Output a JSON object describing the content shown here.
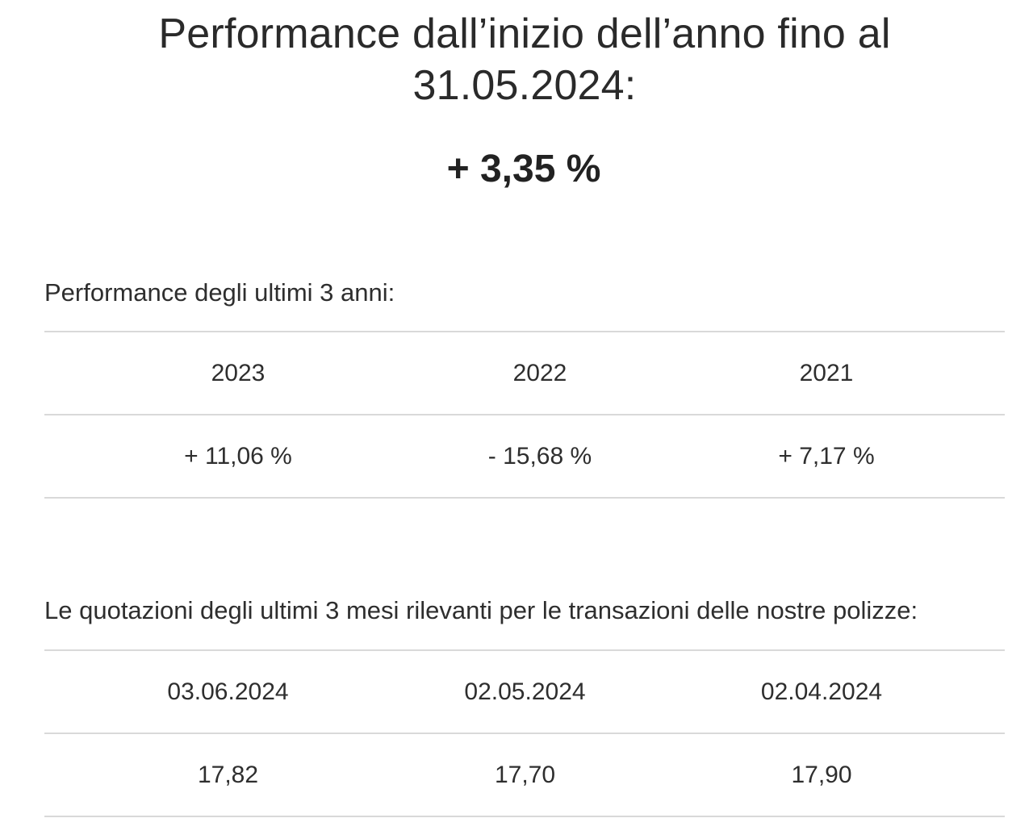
{
  "header": {
    "title": "Performance dall’inizio dell’anno fino al 31.05.2024:",
    "ytd_performance": "+ 3,35 %"
  },
  "performance_section": {
    "heading": "Performance degli ultimi 3 anni:",
    "years": [
      "2023",
      "2022",
      "2021"
    ],
    "values": [
      "+ 11,06 %",
      "- 15,68 %",
      "+ 7,17 %"
    ]
  },
  "quotes_section": {
    "heading": "Le quotazioni degli ultimi 3 mesi rilevanti per le transazioni delle nostre polizze:",
    "dates": [
      "03.06.2024",
      "02.05.2024",
      "02.04.2024"
    ],
    "prices": [
      "17,82",
      "17,70",
      "17,90"
    ]
  }
}
